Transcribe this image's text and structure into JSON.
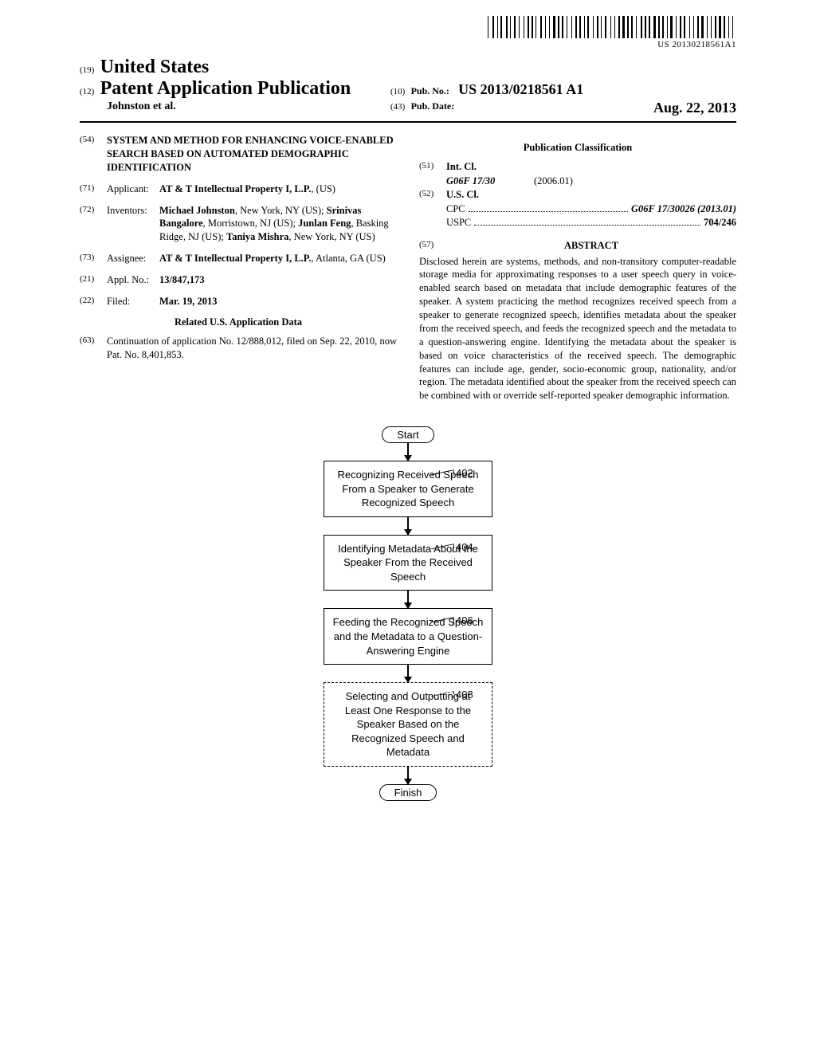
{
  "barcode_text": "US 20130218561A1",
  "header": {
    "code19": "(19)",
    "country": "United States",
    "code12": "(12)",
    "pub_type": "Patent Application Publication",
    "authors_line": "Johnston et al.",
    "code10": "(10)",
    "pub_no_label": "Pub. No.:",
    "pub_no_value": "US 2013/0218561 A1",
    "code43": "(43)",
    "pub_date_label": "Pub. Date:",
    "pub_date_value": "Aug. 22, 2013"
  },
  "left_fields": {
    "f54": {
      "code": "(54)",
      "value": "SYSTEM AND METHOD FOR ENHANCING VOICE-ENABLED SEARCH BASED ON AUTOMATED DEMOGRAPHIC IDENTIFICATION"
    },
    "f71": {
      "code": "(71)",
      "label": "Applicant:",
      "value_bold": "AT & T Intellectual Property I, L.P.",
      "value_rest": ", (US)"
    },
    "f72": {
      "code": "(72)",
      "label": "Inventors:",
      "value": "<b>Michael Johnston</b>, New York, NY (US); <b>Srinivas Bangalore</b>, Morristown, NJ (US); <b>Junlan Feng</b>, Basking Ridge, NJ (US); <b>Taniya Mishra</b>, New York, NY (US)"
    },
    "f73": {
      "code": "(73)",
      "label": "Assignee:",
      "value_bold": "AT & T Intellectual Property I, L.P.",
      "value_rest": ", Atlanta, GA (US)"
    },
    "f21": {
      "code": "(21)",
      "label": "Appl. No.:",
      "value": "13/847,173"
    },
    "f22": {
      "code": "(22)",
      "label": "Filed:",
      "value": "Mar. 19, 2013"
    },
    "related_heading": "Related U.S. Application Data",
    "f63": {
      "code": "(63)",
      "value": "Continuation of application No. 12/888,012, filed on Sep. 22, 2010, now Pat. No. 8,401,853."
    }
  },
  "right_fields": {
    "classif_heading": "Publication Classification",
    "f51": {
      "code": "(51)",
      "label": "Int. Cl.",
      "class_code": "G06F 17/30",
      "class_date": "(2006.01)"
    },
    "f52": {
      "code": "(52)",
      "label": "U.S. Cl.",
      "cpc_left": "CPC",
      "cpc_right": "G06F 17/30026 (2013.01)",
      "uspc_left": "USPC",
      "uspc_right": "704/246"
    },
    "abstract_code": "(57)",
    "abstract_label": "ABSTRACT",
    "abstract_text": "Disclosed herein are systems, methods, and non-transitory computer-readable storage media for approximating responses to a user speech query in voice-enabled search based on metadata that include demographic features of the speaker. A system practicing the method recognizes received speech from a speaker to generate recognized speech, identifies metadata about the speaker from the received speech, and feeds the recognized speech and the metadata to a question-answering engine. Identifying the metadata about the speaker is based on voice characteristics of the received speech. The demographic features can include age, gender, socio-economic group, nationality, and/or region. The metadata identified about the speaker from the received speech can be combined with or override self-reported speaker demographic information."
  },
  "flowchart": {
    "start": "Start",
    "finish": "Finish",
    "steps": [
      {
        "text": "Recognizing Received Speech From a Speaker to Generate Recognized Speech",
        "ref": "402",
        "dashed": false
      },
      {
        "text": "Identifying Metadata About the Speaker From the Received Speech",
        "ref": "404",
        "dashed": false
      },
      {
        "text": "Feeding the Recognized Speech and the Metadata to a Question-Answering Engine",
        "ref": "406",
        "dashed": false
      },
      {
        "text": "Selecting and Outputting at Least One Response to the Speaker Based on the Recognized Speech and Metadata",
        "ref": "408",
        "dashed": true
      }
    ]
  },
  "barcode_widths": [
    1,
    3,
    2,
    2,
    1,
    1,
    2,
    3,
    2,
    1,
    1,
    2,
    2,
    2,
    1,
    3,
    1,
    2,
    2,
    1,
    2,
    1,
    1,
    3,
    2,
    2,
    1,
    2,
    1,
    2,
    3,
    1,
    2,
    1,
    2,
    2,
    1,
    3,
    1,
    2,
    2,
    1,
    2,
    2,
    1,
    1,
    2,
    3,
    1,
    2,
    2,
    1,
    1,
    2,
    2,
    3,
    1,
    2,
    1,
    2,
    2,
    1,
    3,
    1,
    2,
    1,
    2,
    2,
    1,
    3,
    2,
    1,
    2,
    1,
    2,
    2,
    3,
    1,
    2,
    1,
    2,
    2,
    1,
    1,
    3,
    2,
    1,
    2,
    2,
    1,
    2,
    3,
    1,
    2,
    1,
    2,
    2,
    1,
    3,
    2,
    1,
    2,
    1,
    2,
    2,
    1,
    3,
    1,
    2,
    2,
    1,
    2,
    1,
    3
  ]
}
